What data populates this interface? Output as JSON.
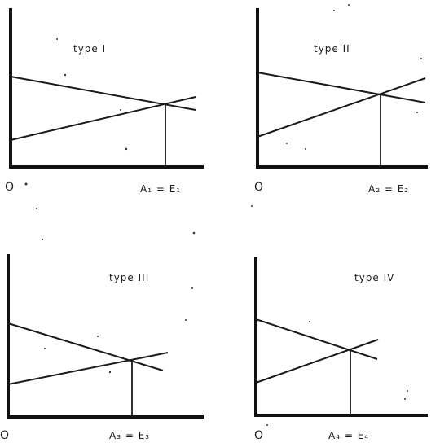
{
  "panels": [
    {
      "title": "type I",
      "origin": "O",
      "axis_label": "A₁ = E₁"
    },
    {
      "title": "type II",
      "origin": "O",
      "axis_label": "A₂ = E₂"
    },
    {
      "title": "type III",
      "origin": "O",
      "axis_label": "A₃ = E₃"
    },
    {
      "title": "type IV",
      "origin": "O",
      "axis_label": "A₄ = E₄"
    }
  ],
  "colors": {
    "ink": "#1a1a1a",
    "background": "#ffffff"
  }
}
